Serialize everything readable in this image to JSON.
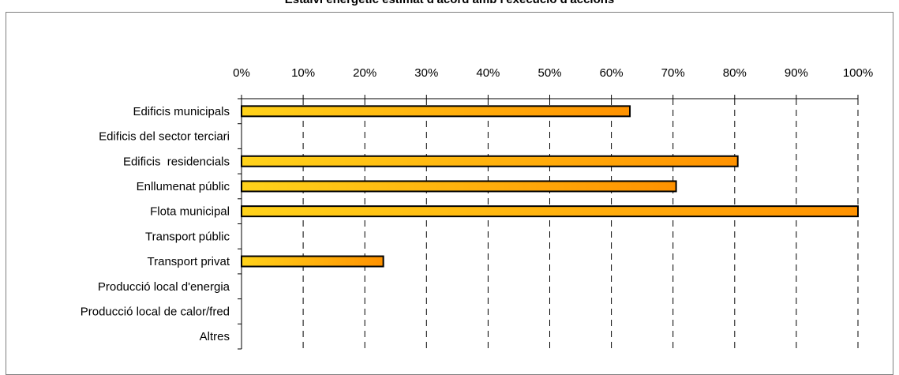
{
  "chart_data": {
    "type": "bar",
    "orientation": "horizontal",
    "title": "Estalvi energètic estimat d'acord amb l'execució d'accions",
    "categories": [
      "Edificis municipals",
      "Edificis del sector terciari",
      "Edificis  residencials",
      "Enllumenat públic",
      "Flota municipal",
      "Transport públic",
      "Transport privat",
      "Producció local d'energia",
      "Producció local de calor/fred",
      "Altres"
    ],
    "values": [
      63,
      0,
      80.5,
      70.5,
      100,
      0,
      23,
      0,
      0,
      0
    ],
    "xlim": [
      0,
      100
    ],
    "xticks": [
      "0%",
      "10%",
      "20%",
      "30%",
      "40%",
      "50%",
      "60%",
      "70%",
      "80%",
      "90%",
      "100%"
    ],
    "x_axis_position": "top",
    "grid": "vertical dashed",
    "colors": {
      "bar_start": "#ffd21a",
      "bar_end": "#ff9200",
      "bar_stroke": "#000000"
    }
  }
}
